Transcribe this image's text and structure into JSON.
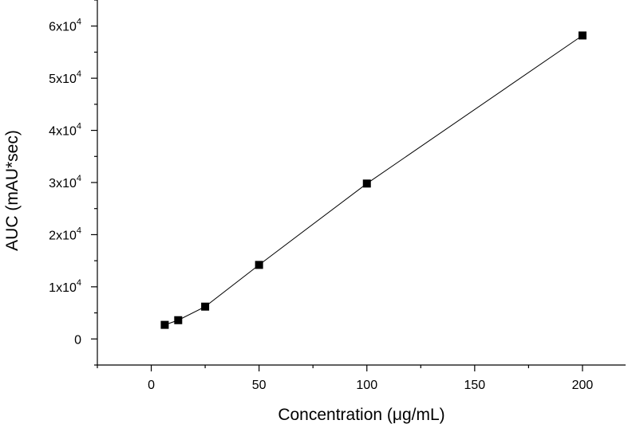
{
  "chart_data": {
    "type": "scatter",
    "title": "",
    "xlabel": "Concentration (μg/mL)",
    "ylabel": "AUC (mAU*sec)",
    "xlim": [
      -25,
      220
    ],
    "ylim": [
      -5000,
      65000
    ],
    "x_ticks": [
      0,
      50,
      100,
      150,
      200
    ],
    "x_tick_labels": [
      "0",
      "50",
      "100",
      "150",
      "200"
    ],
    "y_ticks": [
      0,
      10000,
      20000,
      30000,
      40000,
      50000,
      60000
    ],
    "y_tick_labels": [
      {
        "base": "0",
        "exp": ""
      },
      {
        "base": "1x10",
        "exp": "4"
      },
      {
        "base": "2x10",
        "exp": "4"
      },
      {
        "base": "3x10",
        "exp": "4"
      },
      {
        "base": "4x10",
        "exp": "4"
      },
      {
        "base": "5x10",
        "exp": "4"
      },
      {
        "base": "6x10",
        "exp": "4"
      }
    ],
    "grid": false,
    "legend": "none",
    "marker_color": "#000000",
    "line_color": "#000000",
    "series": [
      {
        "x": [
          6.25,
          12.5,
          25,
          50,
          100,
          200
        ],
        "y": [
          2700,
          3600,
          6200,
          14200,
          29800,
          58200
        ]
      }
    ]
  }
}
